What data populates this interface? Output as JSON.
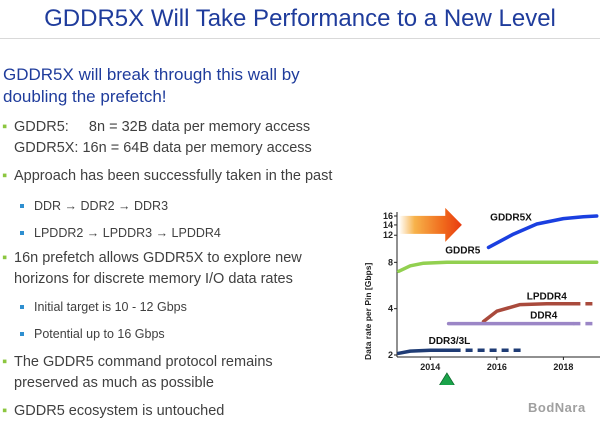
{
  "title": "GDDR5X Will Take Performance to a New Level",
  "lead": "GDDR5X will break through this wall by doubling the prefetch!",
  "bullets": {
    "b1_line1": "GDDR5:     8n = 32B data per memory access",
    "b1_line2": "GDDR5X: 16n = 64B data per memory access",
    "b2": "Approach has been successfully taken in the past",
    "b2_sub1": "DDR → DDR2 → DDR3",
    "b2_sub2": "LPDDR2 → LPDDR3 → LPDDR4",
    "b3_line1": "16n prefetch allows GDDR5X to explore new",
    "b3_line2": "horizons for discrete memory I/O data rates",
    "b3_sub1": "Initial target is 10 - 12 Gbps",
    "b3_sub2": "Potential up to 16 Gbps",
    "b4_line1": "The GDDR5 command protocol remains",
    "b4_line2": "preserved as much as possible",
    "b5": "GDDR5 ecosystem is untouched"
  },
  "logo": "BodNara",
  "chart_data": {
    "type": "line",
    "ylabel": "Data rate per Pin [Gbps]",
    "yscale": "log2",
    "yticks": [
      2,
      4,
      8,
      12,
      14,
      16
    ],
    "xticks": [
      2014,
      2016,
      2018
    ],
    "series": [
      {
        "name": "GDDR5X",
        "color": "#1a3fe0",
        "style": "solid",
        "x": [
          2015.75,
          2016.5,
          2017.2,
          2018.0,
          2018.6,
          2019.0
        ],
        "y": [
          10.0,
          12.2,
          14.2,
          15.4,
          15.8,
          16.0
        ]
      },
      {
        "name": "GDDR5",
        "color": "#92d050",
        "style": "solid",
        "x": [
          2013.05,
          2013.4,
          2013.8,
          2014.5,
          2016.0,
          2017.5,
          2019.0
        ],
        "y": [
          7.0,
          7.6,
          7.9,
          8.0,
          8.0,
          8.0,
          8.0
        ]
      },
      {
        "name": "LPDDR4",
        "color": "#a94a3c",
        "style": "solid",
        "x": [
          2015.6,
          2016.0,
          2016.7,
          2017.5,
          2018.3
        ],
        "y": [
          3.3,
          3.85,
          4.25,
          4.3,
          4.3
        ]
      },
      {
        "name": "LPDDR4",
        "color": "#a94a3c",
        "style": "dashed",
        "x": [
          2018.3,
          2019.0
        ],
        "y": [
          4.3,
          4.3
        ]
      },
      {
        "name": "DDR4",
        "color": "#9b86c6",
        "style": "solid",
        "x": [
          2014.55,
          2016.0,
          2017.5,
          2018.3
        ],
        "y": [
          3.2,
          3.2,
          3.2,
          3.2
        ]
      },
      {
        "name": "DDR4",
        "color": "#9b86c6",
        "style": "dashed",
        "x": [
          2018.3,
          2019.0
        ],
        "y": [
          3.2,
          3.2
        ]
      },
      {
        "name": "DDR3/3L",
        "color": "#1f3c75",
        "style": "solid",
        "x": [
          2013.05,
          2013.4,
          2014.0,
          2014.7
        ],
        "y": [
          2.05,
          2.12,
          2.15,
          2.15
        ]
      },
      {
        "name": "DDR3/3L",
        "color": "#1f3c75",
        "style": "dashed",
        "x": [
          2014.7,
          2016.8
        ],
        "y": [
          2.15,
          2.15
        ]
      }
    ],
    "labels": [
      "GDDR5X",
      "GDDR5",
      "LPDDR4",
      "DDR4",
      "DDR3/3L"
    ],
    "marker_year": 2014.5
  }
}
